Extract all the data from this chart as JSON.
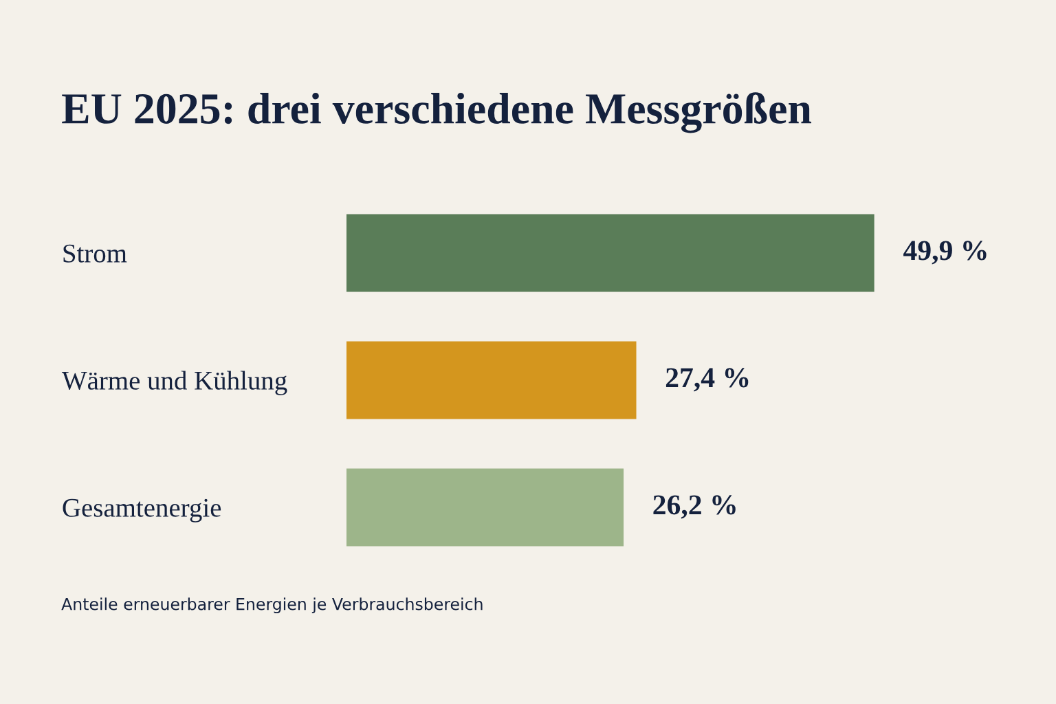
{
  "chart_data": {
    "type": "bar",
    "orientation": "horizontal",
    "title": "EU 2025: drei verschiedene Messgrößen",
    "categories": [
      "Strom",
      "Wärme und Kühlung",
      "Gesamtenergie"
    ],
    "values": [
      49.9,
      27.4,
      26.2
    ],
    "colors": [
      "#5a7d58",
      "#d4961e",
      "#9db58a"
    ],
    "value_labels": [
      "49,9 %",
      "27,4 %",
      "26,2 %"
    ],
    "tick_labels": "y",
    "grid": false,
    "annotations": [
      "Anteile erneuerbarer Energien je Verbrauchsbereich"
    ]
  }
}
